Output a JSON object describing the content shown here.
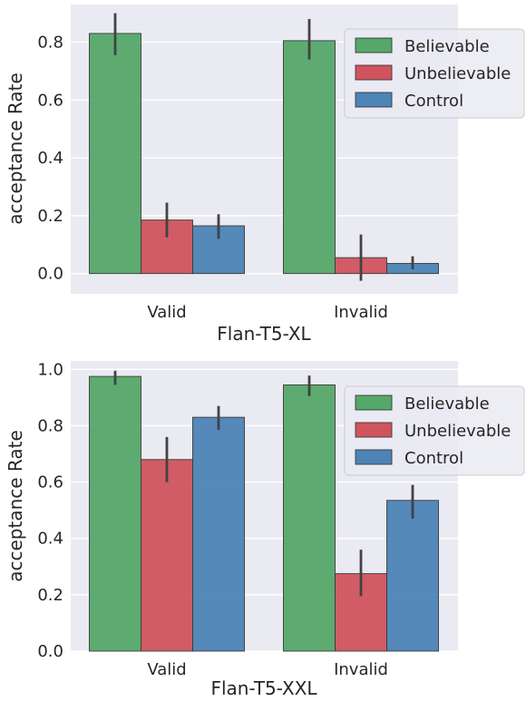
{
  "chart_data": [
    {
      "type": "bar",
      "xlabel": "Flan-T5-XL",
      "ylabel": "acceptance Rate",
      "categories": [
        "Valid",
        "Invalid"
      ],
      "yticks": [
        "0.0",
        "0.2",
        "0.4",
        "0.6",
        "0.8"
      ],
      "ylim": [
        -0.07,
        0.93
      ],
      "grid": true,
      "legend_position": "upper-right",
      "series": [
        {
          "name": "Believable",
          "color": "#55a868",
          "values": [
            0.83,
            0.805
          ],
          "err_low": [
            0.755,
            0.74
          ],
          "err_high": [
            0.9,
            0.88
          ]
        },
        {
          "name": "Unbelievable",
          "color": "#d0545d",
          "values": [
            0.185,
            0.055
          ],
          "err_low": [
            0.125,
            -0.025
          ],
          "err_high": [
            0.245,
            0.135
          ]
        },
        {
          "name": "Control",
          "color": "#4c84b5",
          "values": [
            0.165,
            0.035
          ],
          "err_low": [
            0.12,
            0.015
          ],
          "err_high": [
            0.205,
            0.06
          ]
        }
      ]
    },
    {
      "type": "bar",
      "xlabel": "Flan-T5-XXL",
      "ylabel": "acceptance Rate",
      "categories": [
        "Valid",
        "Invalid"
      ],
      "yticks": [
        "0.0",
        "0.2",
        "0.4",
        "0.6",
        "0.8",
        "1.0"
      ],
      "ylim": [
        0.0,
        1.03
      ],
      "grid": true,
      "legend_position": "upper-right",
      "series": [
        {
          "name": "Believable",
          "color": "#55a868",
          "values": [
            0.975,
            0.945
          ],
          "err_low": [
            0.945,
            0.905
          ],
          "err_high": [
            0.995,
            0.978
          ]
        },
        {
          "name": "Unbelievable",
          "color": "#d0545d",
          "values": [
            0.68,
            0.275
          ],
          "err_low": [
            0.6,
            0.195
          ],
          "err_high": [
            0.76,
            0.36
          ]
        },
        {
          "name": "Control",
          "color": "#4c84b5",
          "values": [
            0.83,
            0.535
          ],
          "err_low": [
            0.785,
            0.47
          ],
          "err_high": [
            0.87,
            0.59
          ]
        }
      ]
    }
  ]
}
